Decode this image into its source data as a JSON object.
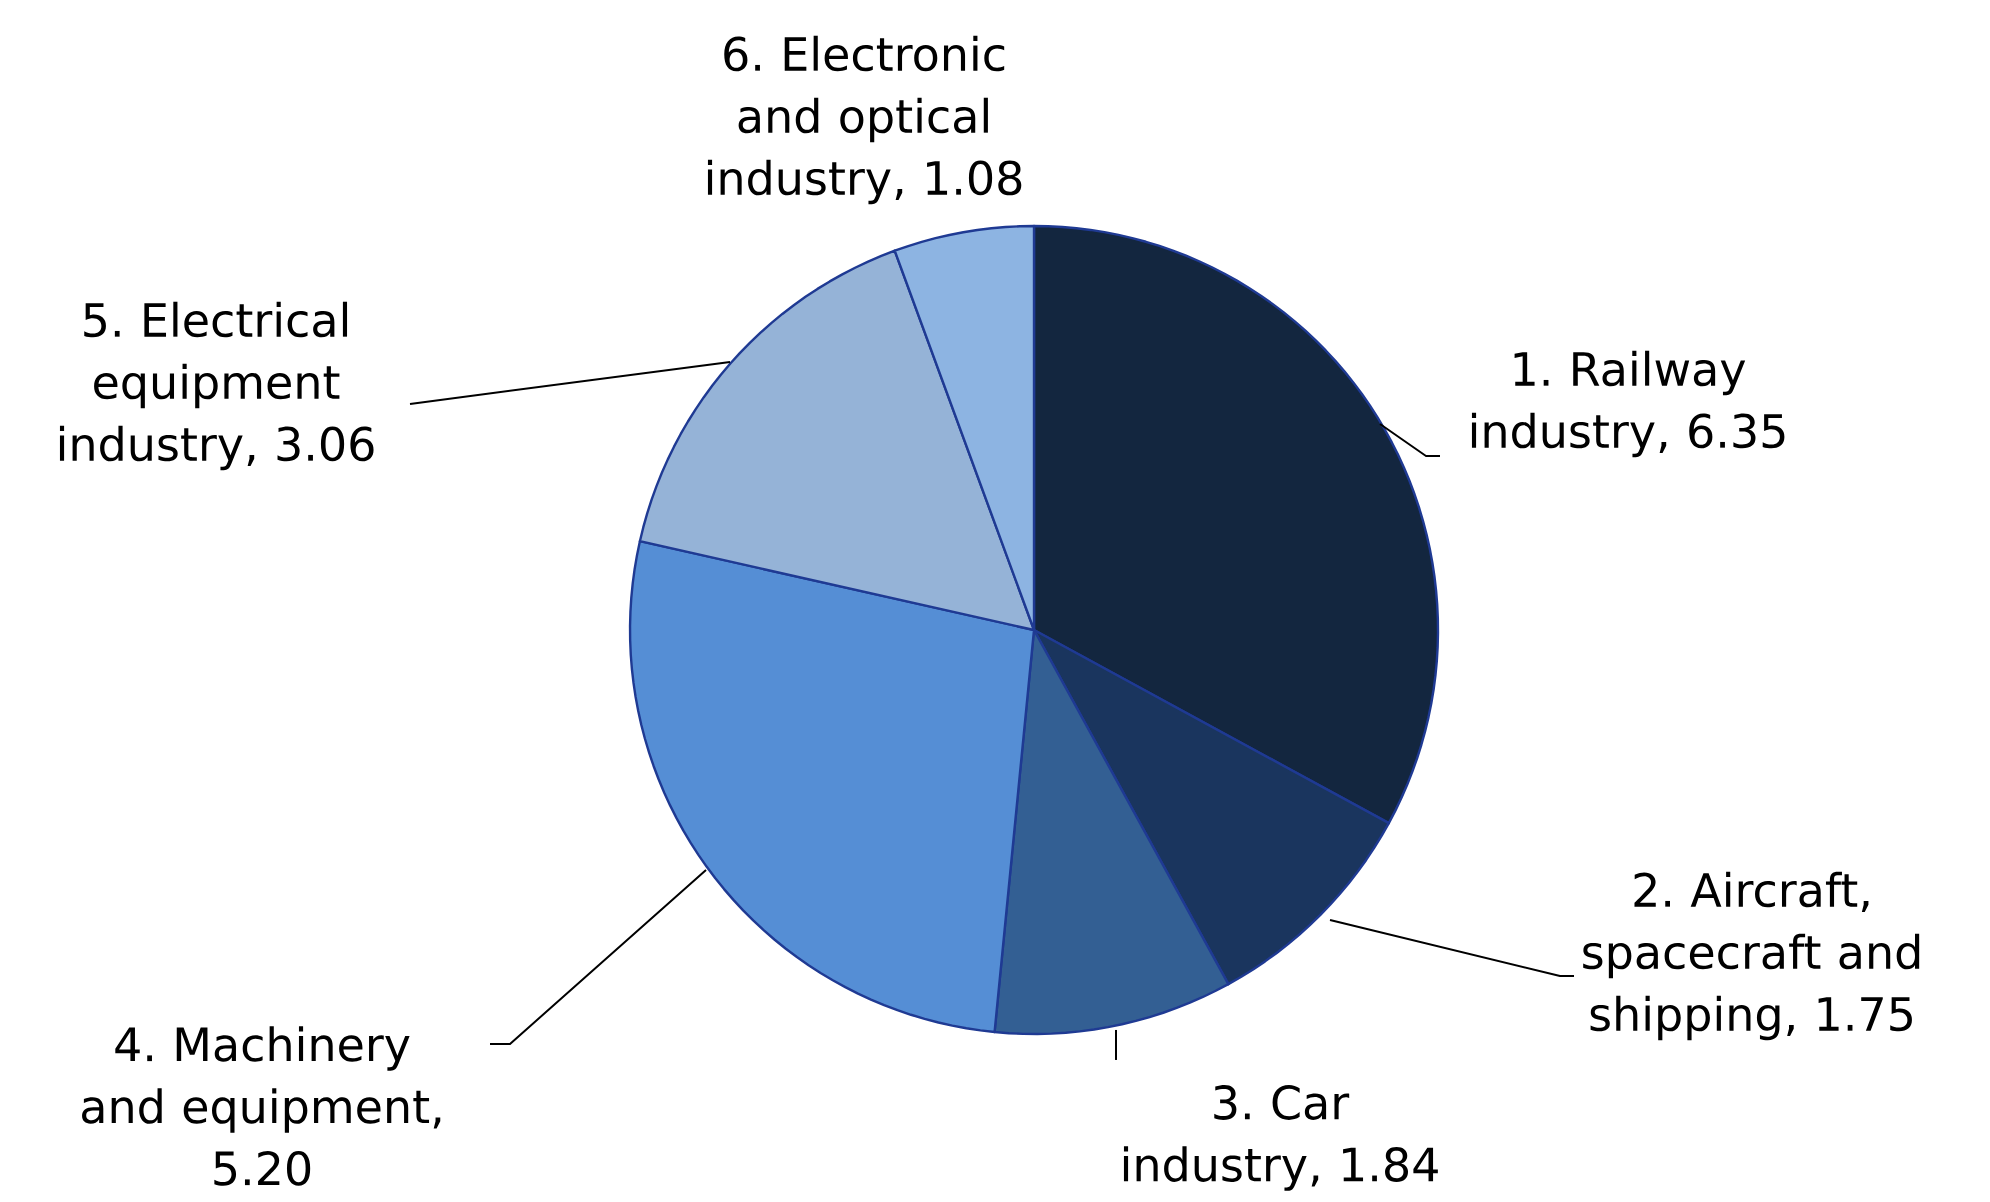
{
  "chart_data": {
    "type": "pie",
    "categories": [
      "1. Railway industry, 6.35",
      "2. Aircraft, spacecraft and shipping, 1.75",
      "3. Car industry, 1.84",
      "4. Machinery and equipment, 5.20",
      "5. Electrical equipment industry, 3.06",
      "6. Electronic and optical industry, 1.08"
    ],
    "values": [
      6.35,
      1.75,
      1.84,
      5.2,
      3.06,
      1.08
    ],
    "colors": [
      "#13263f",
      "#1a355e",
      "#335f93",
      "#558ed5",
      "#95b3d7",
      "#8db4e2"
    ]
  }
}
